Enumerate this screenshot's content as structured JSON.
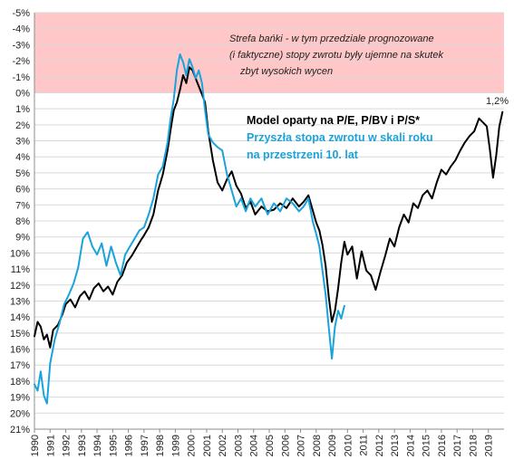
{
  "chart_data": {
    "type": "line",
    "title": "",
    "xlabel": "",
    "ylabel": "",
    "y_axis_inverted": true,
    "ylim": [
      -5,
      21
    ],
    "y_ticks": [
      "-5%",
      "-4%",
      "-3%",
      "-2%",
      "-1%",
      "0%",
      "1%",
      "2%",
      "3%",
      "4%",
      "5%",
      "6%",
      "7%",
      "8%",
      "9%",
      "10%",
      "11%",
      "12%",
      "13%",
      "14%",
      "15%",
      "16%",
      "17%",
      "18%",
      "19%",
      "20%",
      "21%"
    ],
    "x_ticks": [
      "1990",
      "1991",
      "1992",
      "1993",
      "1994",
      "1995",
      "1996",
      "1997",
      "1998",
      "1999",
      "2000",
      "2001",
      "2002",
      "2003",
      "2004",
      "2005",
      "2006",
      "2007",
      "2008",
      "2009",
      "2010",
      "2011",
      "2012",
      "2013",
      "2014",
      "2015",
      "2016",
      "2017",
      "2018",
      "2019"
    ],
    "xlim": [
      1990,
      2020
    ],
    "grid": "horizontal",
    "shaded_region": {
      "from": -5,
      "to": 0,
      "color": "#ffc7c7",
      "text": [
        "Strefa bańki - w tym przedziale prognozowane",
        "(i faktyczne) stopy zwrotu były ujemne na skutek",
        "zbyt wysokich wycen"
      ]
    },
    "end_label": "1,2%",
    "legend": [
      "Model oparty na P/E, P/BV i P/S*",
      "Przyszła stopa zwrotu w skali roku na przestrzeni 10. lat"
    ],
    "legend_lines": [
      [
        "Model oparty na P/E, P/BV i P/S*"
      ],
      [
        "Przyszła stopa zwrotu w skali roku",
        "na przestrzeni 10. lat"
      ]
    ],
    "series": [
      {
        "color": "#000000",
        "x": [
          1990.0,
          1990.2,
          1990.4,
          1990.6,
          1990.8,
          1991.0,
          1991.2,
          1991.5,
          1991.8,
          1992.0,
          1992.3,
          1992.6,
          1992.9,
          1993.2,
          1993.5,
          1993.8,
          1994.1,
          1994.4,
          1994.7,
          1995.0,
          1995.3,
          1995.6,
          1995.9,
          1996.2,
          1996.5,
          1996.8,
          1997.0,
          1997.3,
          1997.6,
          1997.9,
          1998.2,
          1998.5,
          1998.7,
          1998.9,
          1999.1,
          1999.3,
          1999.5,
          1999.7,
          1999.9,
          2000.1,
          2000.3,
          2000.5,
          2000.7,
          2000.9,
          2001.1,
          2001.4,
          2001.7,
          2002.0,
          2002.3,
          2002.6,
          2002.9,
          2003.2,
          2003.5,
          2003.8,
          2004.1,
          2004.5,
          2004.9,
          2005.3,
          2005.7,
          2006.1,
          2006.5,
          2006.9,
          2007.2,
          2007.5,
          2007.8,
          2008.0,
          2008.2,
          2008.4,
          2008.6,
          2008.8,
          2009.0,
          2009.2,
          2009.4,
          2009.6,
          2009.8,
          2010.0,
          2010.3,
          2010.6,
          2010.9,
          2011.2,
          2011.5,
          2011.8,
          2012.1,
          2012.4,
          2012.7,
          2013.0,
          2013.3,
          2013.6,
          2013.9,
          2014.2,
          2014.5,
          2014.8,
          2015.1,
          2015.4,
          2015.7,
          2016.0,
          2016.3,
          2016.6,
          2016.9,
          2017.2,
          2017.5,
          2017.8,
          2018.1,
          2018.4,
          2018.7,
          2018.9,
          2019.1,
          2019.3,
          2019.5,
          2019.7,
          2019.9
        ],
        "y": [
          15.2,
          14.3,
          14.6,
          15.4,
          15.1,
          15.9,
          14.8,
          14.5,
          13.8,
          13.2,
          12.9,
          13.4,
          12.7,
          12.4,
          12.9,
          12.2,
          11.9,
          12.4,
          12.1,
          12.6,
          11.8,
          11.4,
          10.6,
          10.2,
          9.7,
          9.2,
          8.9,
          8.4,
          7.6,
          6.1,
          5.1,
          3.6,
          2.3,
          1.1,
          0.6,
          -0.2,
          -1.1,
          -0.6,
          -1.6,
          -1.4,
          -0.9,
          -0.4,
          0.1,
          0.6,
          2.4,
          4.2,
          5.6,
          6.1,
          5.4,
          4.9,
          5.8,
          6.3,
          7.2,
          6.8,
          7.6,
          7.1,
          7.4,
          7.3,
          6.9,
          7.2,
          6.6,
          7.1,
          6.8,
          6.4,
          7.4,
          8.1,
          8.6,
          9.5,
          10.8,
          12.7,
          14.3,
          13.6,
          12.2,
          10.6,
          9.3,
          10.1,
          9.6,
          11.6,
          9.9,
          11.1,
          11.4,
          12.3,
          11.2,
          10.2,
          9.1,
          9.6,
          8.4,
          7.6,
          8.1,
          6.9,
          7.2,
          6.4,
          6.1,
          6.6,
          5.6,
          4.8,
          5.1,
          4.6,
          4.2,
          3.6,
          3.1,
          2.7,
          2.4,
          1.6,
          1.9,
          2.1,
          3.6,
          5.3,
          3.9,
          2.1,
          1.2
        ]
      },
      {
        "color": "#1aa3db",
        "x": [
          1990.0,
          1990.2,
          1990.4,
          1990.6,
          1990.8,
          1991.0,
          1991.3,
          1991.6,
          1991.9,
          1992.2,
          1992.5,
          1992.8,
          1993.1,
          1993.4,
          1993.7,
          1994.0,
          1994.3,
          1994.6,
          1994.9,
          1995.2,
          1995.5,
          1995.8,
          1996.1,
          1996.4,
          1996.7,
          1997.0,
          1997.3,
          1997.6,
          1997.9,
          1998.2,
          1998.5,
          1998.7,
          1998.9,
          1999.1,
          1999.3,
          1999.5,
          1999.7,
          1999.9,
          2000.1,
          2000.3,
          2000.5,
          2000.7,
          2000.9,
          2001.1,
          2001.4,
          2001.7,
          2002.0,
          2002.3,
          2002.6,
          2002.9,
          2003.2,
          2003.5,
          2003.8,
          2004.1,
          2004.5,
          2004.9,
          2005.3,
          2005.7,
          2006.1,
          2006.5,
          2006.9,
          2007.2,
          2007.5,
          2007.8,
          2008.0,
          2008.2,
          2008.4,
          2008.6,
          2008.8,
          2009.0,
          2009.2,
          2009.4,
          2009.6,
          2009.8
        ],
        "y": [
          18.2,
          18.6,
          17.4,
          18.9,
          19.4,
          16.9,
          15.4,
          14.4,
          13.2,
          12.6,
          11.9,
          10.9,
          9.1,
          8.7,
          9.6,
          10.1,
          9.4,
          10.8,
          9.6,
          10.6,
          11.4,
          10.1,
          9.6,
          9.1,
          8.6,
          8.4,
          7.6,
          6.6,
          5.1,
          4.6,
          3.1,
          1.6,
          0.4,
          -1.4,
          -2.4,
          -1.9,
          -1.1,
          -2.1,
          -1.6,
          -0.9,
          -1.4,
          -0.6,
          1.1,
          2.6,
          3.1,
          3.4,
          3.6,
          5.1,
          6.1,
          7.1,
          6.6,
          7.4,
          6.6,
          7.1,
          6.6,
          7.6,
          6.9,
          7.4,
          6.6,
          6.9,
          7.4,
          7.1,
          6.6,
          8.1,
          8.8,
          9.6,
          11.1,
          12.6,
          14.6,
          16.6,
          14.6,
          13.6,
          14.1,
          13.3
        ]
      }
    ]
  }
}
